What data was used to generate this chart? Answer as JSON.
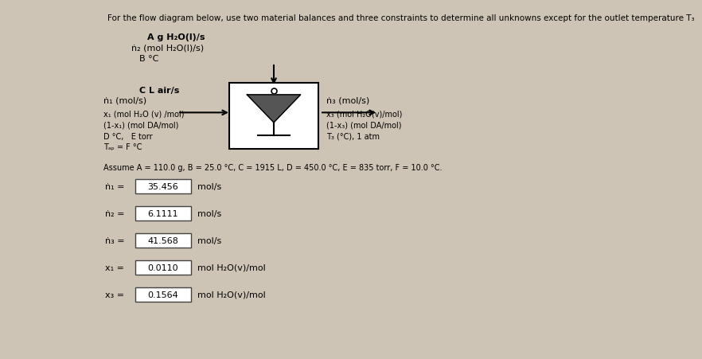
{
  "background_color": "#cdc4b5",
  "title_text": "For the flow diagram below, use two material balances and three constraints to determine all unknowns except for the outlet temperature T₃",
  "assume_text": "Assume A = 110.0 g, B = 25.0 °C, C = 1915 L, D = 450.0 °C, E = 835 torr, F = 10.0 °C.",
  "top_label1": "A g H₂O(l)/s",
  "top_label2": "ṅ₂ (mol H₂O(l)/s)",
  "top_label3": "B °C",
  "left_label1": "C L air/s",
  "left_label2": "ṅ₁ (mol/s)",
  "left_label3": "x₁ (mol H₂O (v) /mol)",
  "left_label4": "(1-x₁) (mol DA/mol)",
  "left_label5": "D °C,   E torr",
  "left_label6": "Tₐₚ = F °C",
  "right_label1": "ṅ₃ (mol/s)",
  "right_label2": "x₃ (mol H₂O(v)/mol)",
  "right_label3": "(1-x₃) (mol DA/mol)",
  "right_label4": "T₃ (°C), 1 atm",
  "result_labels": [
    "ṅ₁ =",
    "ṅ₂ =",
    "ṅ₃ =",
    "x₁ =",
    "x₃ ="
  ],
  "result_values": [
    "35.456",
    "6.1111",
    "41.568",
    "0.0110",
    "0.1564"
  ],
  "result_units": [
    "mol/s",
    "mol/s",
    "mol/s",
    "mol H₂O(v)/mol",
    "mol H₂O(v)/mol"
  ]
}
